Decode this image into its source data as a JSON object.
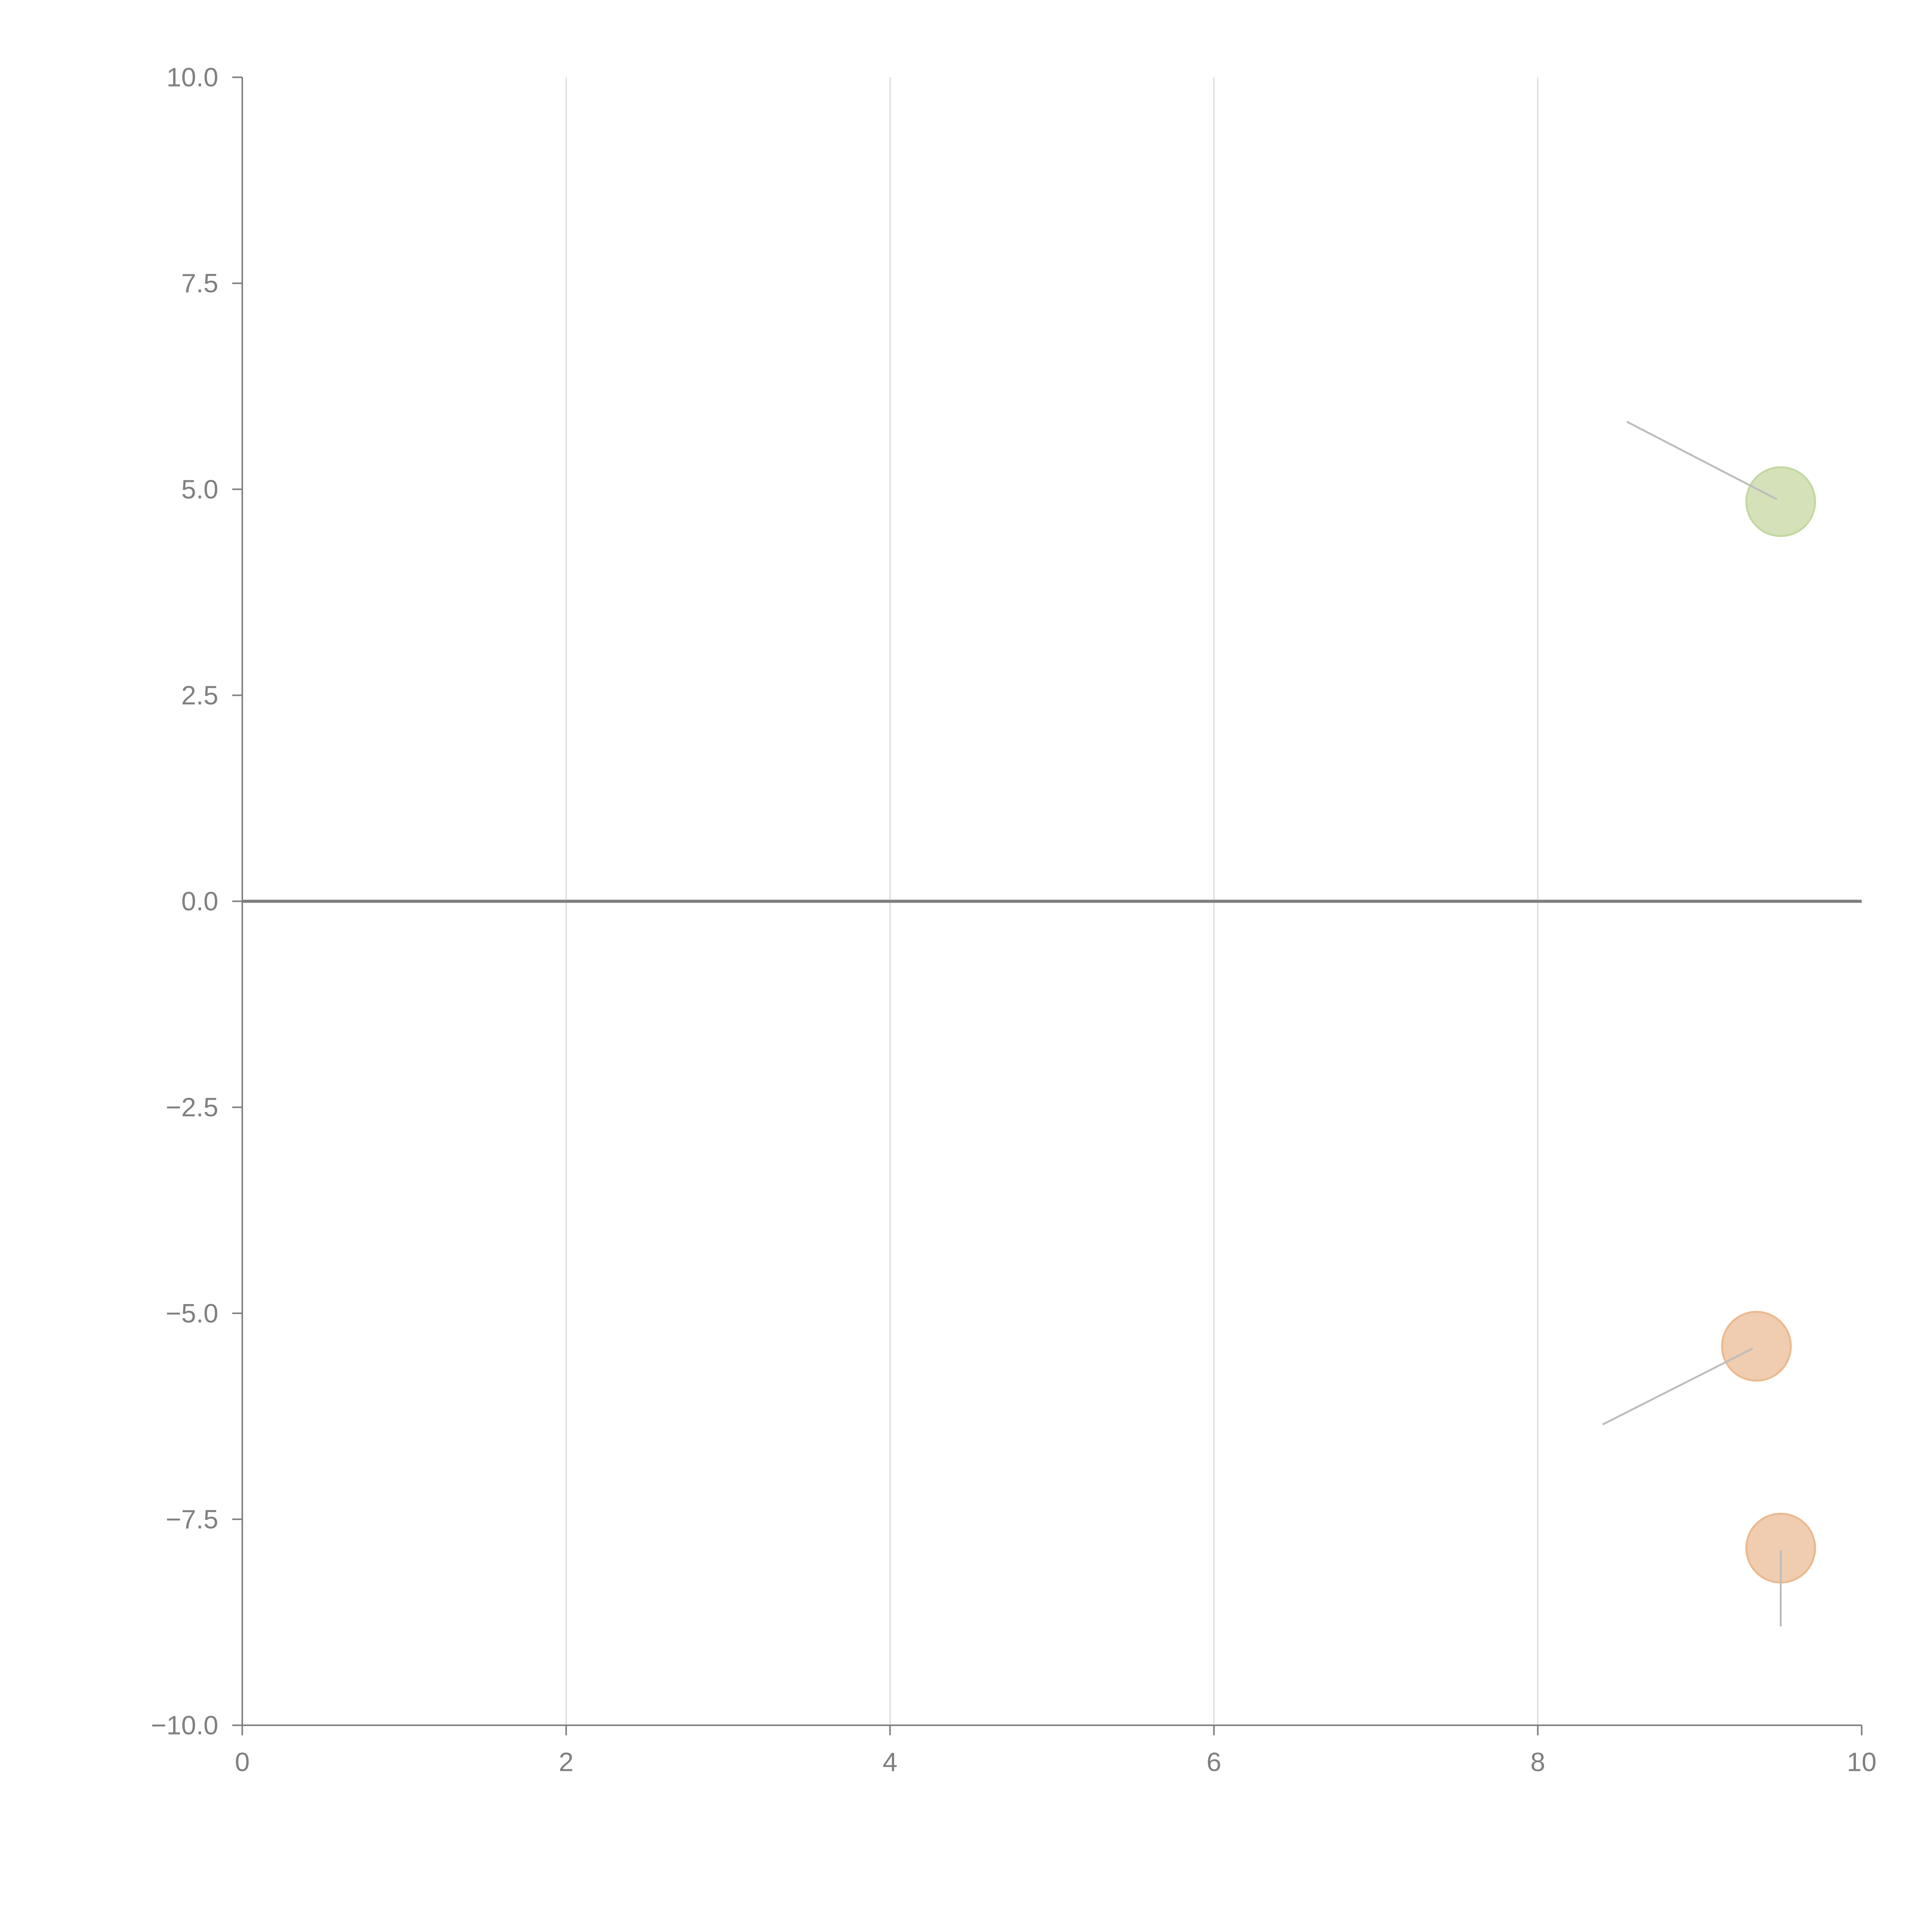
{
  "chart_data": {
    "type": "scatter",
    "title": "",
    "xlabel": "",
    "ylabel": "",
    "xlim": [
      0,
      10
    ],
    "ylim": [
      -10,
      10
    ],
    "x_ticks": [
      0,
      2,
      4,
      6,
      8,
      10
    ],
    "x_tick_labels": [
      "0",
      "2",
      "4",
      "6",
      "8",
      "10"
    ],
    "y_ticks": [
      10,
      7.5,
      5,
      2.5,
      0,
      -2.5,
      -5,
      -7.5,
      -10
    ],
    "y_tick_labels": [
      "10.0",
      "7.5",
      "5.0",
      "2.5",
      "0.0",
      "−2.5",
      "−5.0",
      "−7.5",
      "−10.0"
    ],
    "grid": "vertical",
    "zero_line": true,
    "points": [
      {
        "x": 9.5,
        "y": 4.85,
        "color": "#d5e2b9",
        "edge_color": "#c3d8a2",
        "leader_end": {
          "x": 8.55,
          "y": 5.82
        }
      },
      {
        "x": 9.35,
        "y": -5.4,
        "color": "#f0cdb0",
        "edge_color": "#ebb98f",
        "leader_end": {
          "x": 8.4,
          "y": -6.35
        }
      },
      {
        "x": 9.5,
        "y": -7.85,
        "color": "#f0cdb0",
        "edge_color": "#ebb98f",
        "leader_end": {
          "x": 9.5,
          "y": -8.8
        }
      }
    ]
  }
}
